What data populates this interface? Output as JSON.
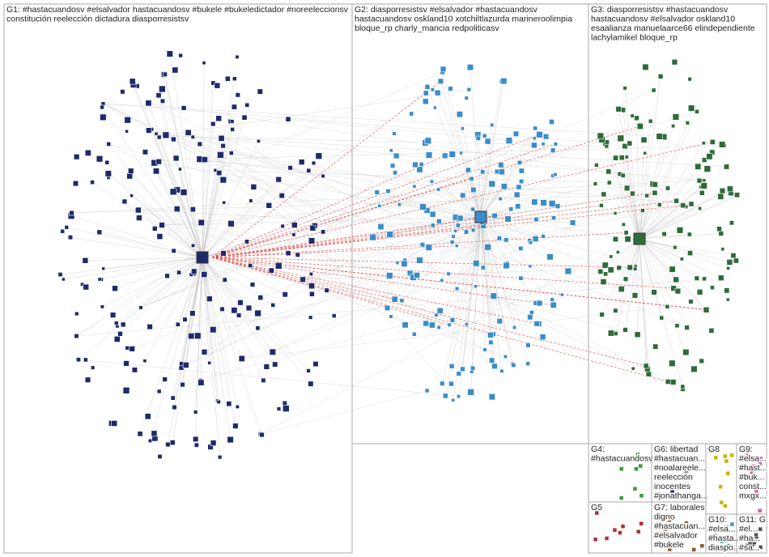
{
  "groups": [
    {
      "lines": [
        "G1: #hastacuandosv #elsalvador hastacuandosv #bukele #bukeledictador #noreeleccionsv",
        "constitución reelección dictadura diasporresistsv"
      ]
    },
    {
      "lines": [
        "G2: diasporresistsv #elsalvador #hastacuandosv",
        "hastacuandosv oskland10 xotchiltlazurda marineroolimpia",
        "bloque_rp charly_mancia redpoliticasv"
      ]
    },
    {
      "lines": [
        "G3: diasporresistsv #hastacuandosv",
        "hastacuandosv #elsalvador oskland10",
        "esaalianza manuelaarce66 elindependiente",
        "lachylamikel bloque_rp"
      ]
    },
    {
      "lines": [
        "G4:",
        "#hastacuandosv"
      ]
    },
    {
      "lines": [
        "G5"
      ]
    },
    {
      "lines": [
        "G6: libertad",
        "#hastacuan...",
        "#noalareele...",
        "reelección",
        "inocentes",
        "#jonathanga..."
      ]
    },
    {
      "lines": [
        "G7: laborales",
        "digno",
        "#hastacuan...",
        "#elsalvador",
        "#bukele"
      ]
    },
    {
      "lines": [
        "G8"
      ]
    },
    {
      "lines": [
        "G9:",
        "#elsa...",
        "#hast...",
        "#buk...",
        "const...",
        "mxgx..."
      ]
    },
    {
      "lines": [
        "G10:",
        "#elsa...",
        "#hasta...",
        "diaspo..."
      ]
    },
    {
      "lines": [
        "G11: G...",
        "#el...",
        "#ha...",
        "#sa..."
      ]
    }
  ]
}
